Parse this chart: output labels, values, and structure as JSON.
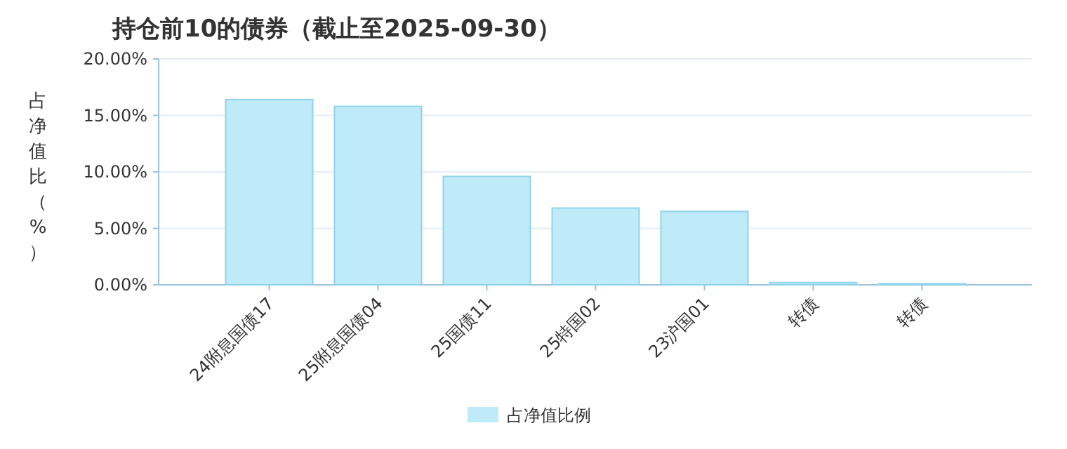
{
  "chart_data": {
    "type": "bar",
    "title": "持仓前10的债券（截止至2025-09-30）",
    "ylabel": "占净值比（%）",
    "categories": [
      "24附息国债17",
      "25附息国债04",
      "25国债11",
      "25特国02",
      "23沪国01",
      "转债",
      "转债"
    ],
    "series": [
      {
        "name": "占净值比例",
        "color": "#bfeaf7",
        "values": [
          16.4,
          15.8,
          9.6,
          6.8,
          6.5,
          0.2,
          0.1
        ]
      }
    ],
    "ylim": [
      0,
      20
    ],
    "yticks": [
      {
        "value": 0,
        "label": "0.00%"
      },
      {
        "value": 5,
        "label": "5.00%"
      },
      {
        "value": 10,
        "label": "10.00%"
      },
      {
        "value": 15,
        "label": "15.00%"
      },
      {
        "value": 20,
        "label": "20.00%"
      }
    ],
    "grid": "y",
    "legend": "bottom"
  }
}
